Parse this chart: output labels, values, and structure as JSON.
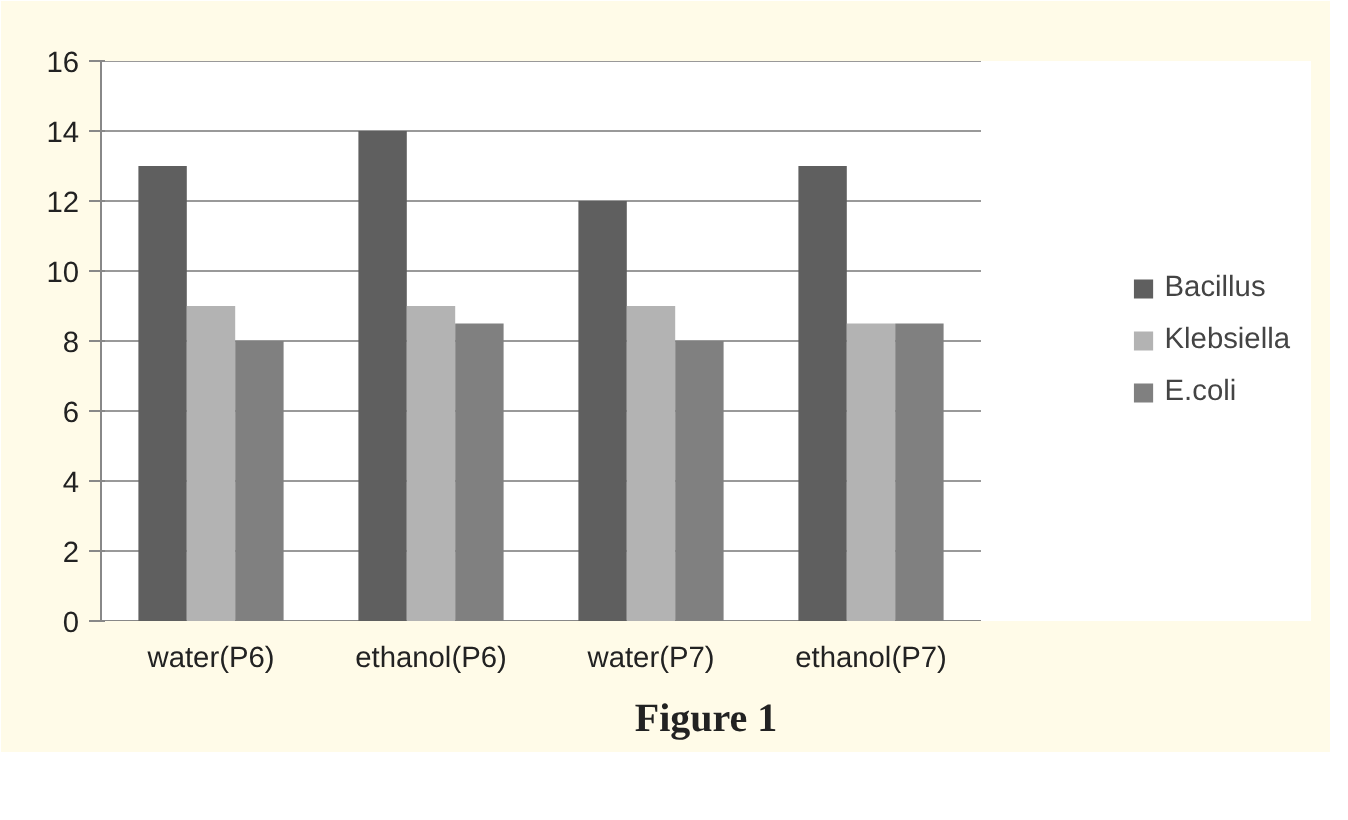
{
  "chart_data": {
    "type": "bar",
    "categories": [
      "water(P6)",
      "ethanol(P6)",
      "water(P7)",
      "ethanol(P7)"
    ],
    "series": [
      {
        "name": "Bacillus",
        "color": "#5f5f5f",
        "values": [
          13,
          14,
          12,
          13
        ]
      },
      {
        "name": "Klebsiella",
        "color": "#b3b3b3",
        "values": [
          9,
          9,
          9,
          8.5
        ]
      },
      {
        "name": "E.coli",
        "color": "#808080",
        "values": [
          8,
          8.5,
          8,
          8.5
        ]
      }
    ],
    "ylim": [
      0,
      16
    ],
    "yticks": [
      0,
      2,
      4,
      6,
      8,
      10,
      12,
      14,
      16
    ],
    "grid": "y",
    "legend": "right",
    "annotations": [
      "Figure 1"
    ]
  }
}
